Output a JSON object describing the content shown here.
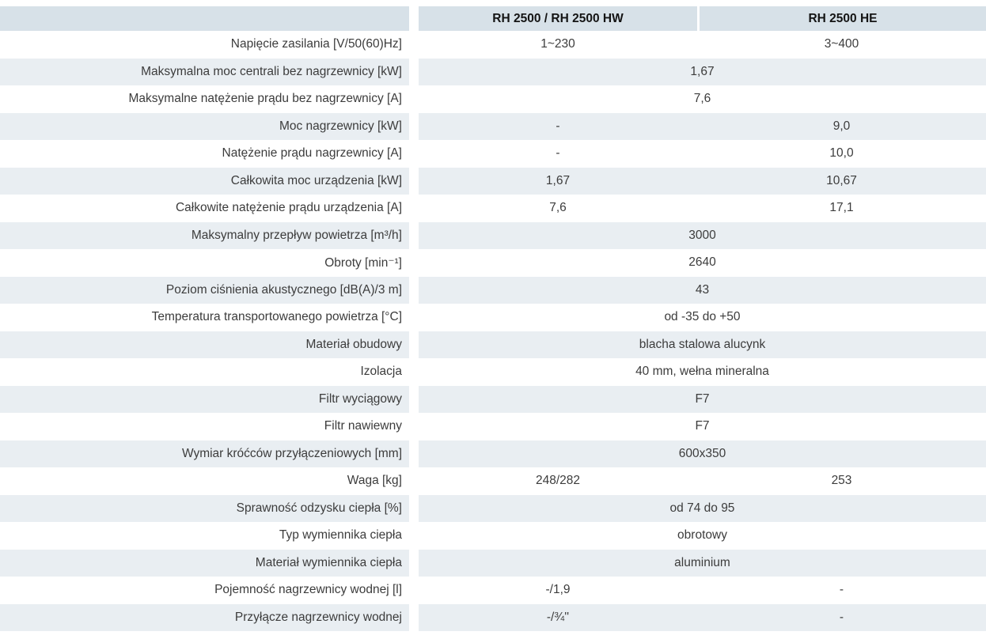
{
  "table": {
    "colors": {
      "header_bg": "#d7e1e8",
      "alt_row_bg": "#e9eef2",
      "text": "#3c3c3c",
      "header_text": "#141414"
    },
    "header": {
      "label_col": "",
      "col1": "RH 2500 / RH 2500 HW",
      "col2": "RH 2500 HE"
    },
    "rows": [
      {
        "label": "Napięcie zasilania [V/50(60)Hz]",
        "values": [
          "1~230",
          "3~400"
        ]
      },
      {
        "label": "Maksymalna moc centrali bez nagrzewnicy [kW]",
        "span": "1,67"
      },
      {
        "label": "Maksymalne natężenie prądu bez nagrzewnicy [A]",
        "span": "7,6"
      },
      {
        "label": "Moc nagrzewnicy [kW]",
        "values": [
          "-",
          "9,0"
        ]
      },
      {
        "label": "Natężenie prądu nagrzewnicy [A]",
        "values": [
          "-",
          "10,0"
        ]
      },
      {
        "label": "Całkowita moc urządzenia [kW]",
        "values": [
          "1,67",
          "10,67"
        ]
      },
      {
        "label": "Całkowite natężenie prądu urządzenia [A]",
        "values": [
          "7,6",
          "17,1"
        ]
      },
      {
        "label": "Maksymalny przepływ powietrza [m³/h]",
        "span": "3000"
      },
      {
        "label": "Obroty [min⁻¹]",
        "span": "2640"
      },
      {
        "label": "Poziom ciśnienia akustycznego [dB(A)/3 m]",
        "span": "43"
      },
      {
        "label": "Temperatura transportowanego powietrza [°C]",
        "span": "od -35 do +50"
      },
      {
        "label": "Materiał obudowy",
        "span": "blacha stalowa alucynk"
      },
      {
        "label": "Izolacja",
        "span": "40 mm, wełna mineralna"
      },
      {
        "label": "Filtr wyciągowy",
        "span": "F7"
      },
      {
        "label": "Filtr nawiewny",
        "span": "F7"
      },
      {
        "label": "Wymiar króćców przyłączeniowych [mm]",
        "span": "600x350"
      },
      {
        "label": "Waga [kg]",
        "values": [
          "248/282",
          "253"
        ]
      },
      {
        "label": "Sprawność odzysku ciepła [%]",
        "span": "od 74 do 95"
      },
      {
        "label": "Typ wymiennika ciepła",
        "span": "obrotowy"
      },
      {
        "label": "Materiał wymiennika ciepła",
        "span": "aluminium"
      },
      {
        "label": "Pojemność nagrzewnicy wodnej [l]",
        "values": [
          "-/1,9",
          "-"
        ]
      },
      {
        "label": "Przyłącze nagrzewnicy wodnej",
        "values": [
          "-/¾''",
          "-"
        ]
      }
    ]
  }
}
